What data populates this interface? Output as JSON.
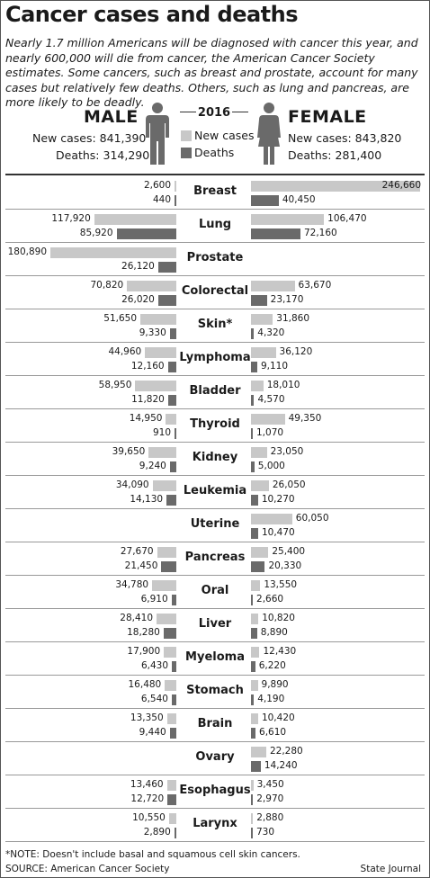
{
  "title": "Cancer cases and deaths",
  "intro": "Nearly 1.7 million Americans will be diagnosed with cancer this year, and nearly 600,000 will die from cancer, the American Cancer Society estimates. Some cancers, such as breast and prostate, account for many cases but relatively few deaths. Others, such as lung and pancreas, are more likely to be deadly.",
  "male": {
    "label": "MALE",
    "new_cases": "New cases: 841,390",
    "deaths": "Deaths: 314,290"
  },
  "female": {
    "label": "FEMALE",
    "new_cases": "New cases: 843,820",
    "deaths": "Deaths: 281,400"
  },
  "legend": {
    "year": "2016",
    "new_label": "New cases",
    "death_label": "Deaths"
  },
  "colors": {
    "new_cases": "#c8c8c8",
    "deaths": "#6a6a6a"
  },
  "icons": {
    "male": "male-figure-icon",
    "female": "female-figure-icon"
  },
  "chart_data": {
    "type": "bar",
    "orientation": "horizontal-diverging",
    "series": [
      {
        "name": "New cases",
        "sex": "male"
      },
      {
        "name": "Deaths",
        "sex": "male"
      },
      {
        "name": "New cases",
        "sex": "female"
      },
      {
        "name": "Deaths",
        "sex": "female"
      }
    ],
    "rows": [
      {
        "cat": "Breast",
        "m_new": 2600,
        "m_death": 440,
        "f_new": 246660,
        "f_death": 40450,
        "m_new_t": "2,600",
        "m_death_t": "440",
        "f_new_t": "246,660",
        "f_death_t": "40,450"
      },
      {
        "cat": "Lung",
        "m_new": 117920,
        "m_death": 85920,
        "f_new": 106470,
        "f_death": 72160,
        "m_new_t": "117,920",
        "m_death_t": "85,920",
        "f_new_t": "106,470",
        "f_death_t": "72,160"
      },
      {
        "cat": "Prostate",
        "m_new": 180890,
        "m_death": 26120,
        "f_new": null,
        "f_death": null,
        "m_new_t": "180,890",
        "m_death_t": "26,120",
        "f_new_t": "",
        "f_death_t": ""
      },
      {
        "cat": "Colorectal",
        "m_new": 70820,
        "m_death": 26020,
        "f_new": 63670,
        "f_death": 23170,
        "m_new_t": "70,820",
        "m_death_t": "26,020",
        "f_new_t": "63,670",
        "f_death_t": "23,170"
      },
      {
        "cat": "Skin*",
        "m_new": 51650,
        "m_death": 9330,
        "f_new": 31860,
        "f_death": 4320,
        "m_new_t": "51,650",
        "m_death_t": "9,330",
        "f_new_t": "31,860",
        "f_death_t": "4,320"
      },
      {
        "cat": "Lymphoma",
        "m_new": 44960,
        "m_death": 12160,
        "f_new": 36120,
        "f_death": 9110,
        "m_new_t": "44,960",
        "m_death_t": "12,160",
        "f_new_t": "36,120",
        "f_death_t": "9,110"
      },
      {
        "cat": "Bladder",
        "m_new": 58950,
        "m_death": 11820,
        "f_new": 18010,
        "f_death": 4570,
        "m_new_t": "58,950",
        "m_death_t": "11,820",
        "f_new_t": "18,010",
        "f_death_t": "4,570"
      },
      {
        "cat": "Thyroid",
        "m_new": 14950,
        "m_death": 910,
        "f_new": 49350,
        "f_death": 1070,
        "m_new_t": "14,950",
        "m_death_t": "910",
        "f_new_t": "49,350",
        "f_death_t": "1,070"
      },
      {
        "cat": "Kidney",
        "m_new": 39650,
        "m_death": 9240,
        "f_new": 23050,
        "f_death": 5000,
        "m_new_t": "39,650",
        "m_death_t": "9,240",
        "f_new_t": "23,050",
        "f_death_t": "5,000"
      },
      {
        "cat": "Leukemia",
        "m_new": 34090,
        "m_death": 14130,
        "f_new": 26050,
        "f_death": 10270,
        "m_new_t": "34,090",
        "m_death_t": "14,130",
        "f_new_t": "26,050",
        "f_death_t": "10,270"
      },
      {
        "cat": "Uterine",
        "m_new": null,
        "m_death": null,
        "f_new": 60050,
        "f_death": 10470,
        "m_new_t": "",
        "m_death_t": "",
        "f_new_t": "60,050",
        "f_death_t": "10,470"
      },
      {
        "cat": "Pancreas",
        "m_new": 27670,
        "m_death": 21450,
        "f_new": 25400,
        "f_death": 20330,
        "m_new_t": "27,670",
        "m_death_t": "21,450",
        "f_new_t": "25,400",
        "f_death_t": "20,330"
      },
      {
        "cat": "Oral",
        "m_new": 34780,
        "m_death": 6910,
        "f_new": 13550,
        "f_death": 2660,
        "m_new_t": "34,780",
        "m_death_t": "6,910",
        "f_new_t": "13,550",
        "f_death_t": "2,660"
      },
      {
        "cat": "Liver",
        "m_new": 28410,
        "m_death": 18280,
        "f_new": 10820,
        "f_death": 8890,
        "m_new_t": "28,410",
        "m_death_t": "18,280",
        "f_new_t": "10,820",
        "f_death_t": "8,890"
      },
      {
        "cat": "Myeloma",
        "m_new": 17900,
        "m_death": 6430,
        "f_new": 12430,
        "f_death": 6220,
        "m_new_t": "17,900",
        "m_death_t": "6,430",
        "f_new_t": "12,430",
        "f_death_t": "6,220"
      },
      {
        "cat": "Stomach",
        "m_new": 16480,
        "m_death": 6540,
        "f_new": 9890,
        "f_death": 4190,
        "m_new_t": "16,480",
        "m_death_t": "6,540",
        "f_new_t": "9,890",
        "f_death_t": "4,190"
      },
      {
        "cat": "Brain",
        "m_new": 13350,
        "m_death": 9440,
        "f_new": 10420,
        "f_death": 6610,
        "m_new_t": "13,350",
        "m_death_t": "9,440",
        "f_new_t": "10,420",
        "f_death_t": "6,610"
      },
      {
        "cat": "Ovary",
        "m_new": null,
        "m_death": null,
        "f_new": 22280,
        "f_death": 14240,
        "m_new_t": "",
        "m_death_t": "",
        "f_new_t": "22,280",
        "f_death_t": "14,240"
      },
      {
        "cat": "Esophagus",
        "m_new": 13460,
        "m_death": 12720,
        "f_new": 3450,
        "f_death": 2970,
        "m_new_t": "13,460",
        "m_death_t": "12,720",
        "f_new_t": "3,450",
        "f_death_t": "2,970"
      },
      {
        "cat": "Larynx",
        "m_new": 10550,
        "m_death": 2890,
        "f_new": 2880,
        "f_death": 730,
        "m_new_t": "10,550",
        "m_death_t": "2,890",
        "f_new_t": "2,880",
        "f_death_t": "730"
      }
    ]
  },
  "footnote": "*NOTE: Doesn't include basal and squamous cell skin cancers.",
  "source": "SOURCE: American Cancer Society",
  "credit": "State Journal"
}
